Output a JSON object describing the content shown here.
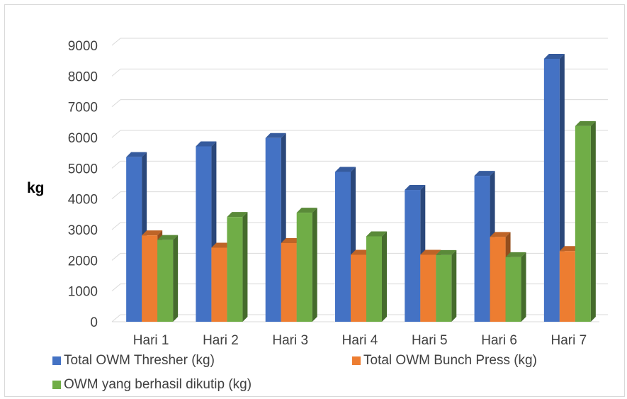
{
  "chart_data": {
    "type": "bar",
    "ylabel": "kg",
    "xlabel": "",
    "ylim": [
      0,
      9000
    ],
    "yticks": [
      0,
      1000,
      2000,
      3000,
      4000,
      5000,
      6000,
      7000,
      8000,
      9000
    ],
    "grid": true,
    "legend_position": "bottom",
    "categories": [
      "Hari 1",
      "Hari 2",
      "Hari 3",
      "Hari 4",
      "Hari 5",
      "Hari 6",
      "Hari 7"
    ],
    "series": [
      {
        "name": "Total OWM Thresher (kg)",
        "color": "#4472c4",
        "values": [
          5200,
          5550,
          5820,
          4720,
          4130,
          4590,
          8400
        ]
      },
      {
        "name": "Total OWM Bunch Press (kg)",
        "color": "#ed7d31",
        "values": [
          2650,
          2250,
          2400,
          2020,
          2020,
          2600,
          2140
        ]
      },
      {
        "name": "OWM yang berhasil dikutip (kg)",
        "color": "#70ad47",
        "values": [
          2500,
          3250,
          3390,
          2620,
          2010,
          1940,
          6210
        ]
      }
    ]
  }
}
